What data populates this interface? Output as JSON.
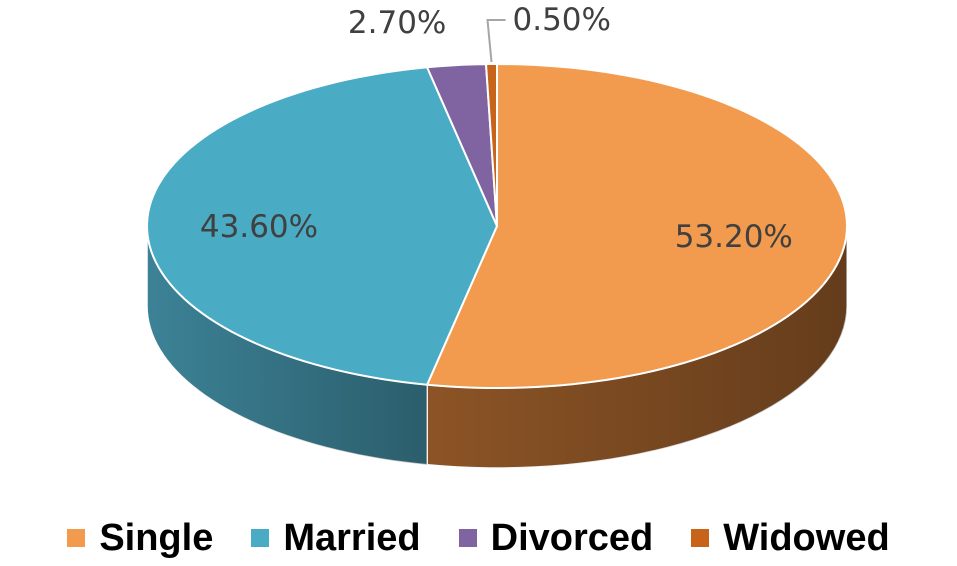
{
  "chart_data": {
    "type": "pie",
    "title": "",
    "categories": [
      "Single",
      "Married",
      "Divorced",
      "Widowed"
    ],
    "values": [
      53.2,
      43.6,
      2.7,
      0.5
    ],
    "labels": [
      "53.20%",
      "43.60%",
      "2.70%",
      "0.50%"
    ],
    "colors": [
      "#F29B4E",
      "#4AABC5",
      "#8064A2",
      "#C8641A"
    ],
    "side_colors": [
      "#8C5426",
      "#3C8296",
      "#5B4678",
      "#8A4512"
    ],
    "legend_position": "bottom",
    "style": "3d-pie"
  }
}
